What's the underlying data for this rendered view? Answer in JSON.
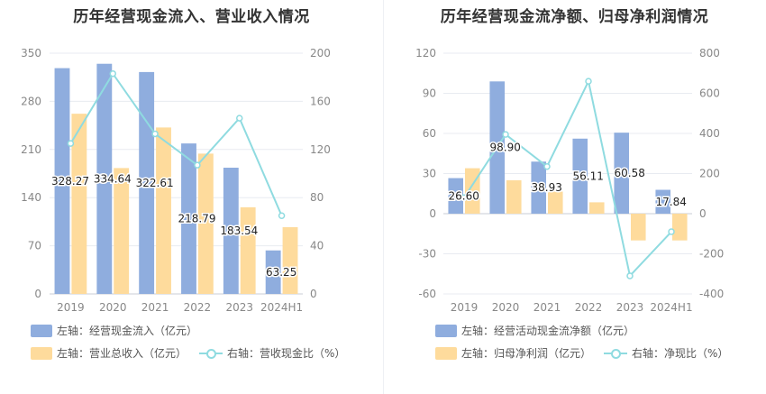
{
  "charts": [
    {
      "title": "历年经营现金流入、营业收入情况",
      "legend": [
        {
          "label": "左轴：经营现金流入（亿元）",
          "color": "#8fadde",
          "kind": "bar"
        },
        {
          "label": "左轴：营业总收入（亿元）",
          "color": "#fedb9c",
          "kind": "bar"
        },
        {
          "label": "右轴：营收现金比（%）",
          "color": "#8fdbe0",
          "kind": "line"
        }
      ]
    },
    {
      "title": "历年经营现金流净额、归母净利润情况",
      "legend": [
        {
          "label": "左轴：经营活动现金流净额（亿元）",
          "color": "#8fadde",
          "kind": "bar"
        },
        {
          "label": "左轴：归母净利润（亿元）",
          "color": "#fedb9c",
          "kind": "bar"
        },
        {
          "label": "右轴：净现比（%）",
          "color": "#8fdbe0",
          "kind": "line"
        }
      ]
    }
  ],
  "chart_data": [
    {
      "type": "bar",
      "title": "历年经营现金流入、营业收入情况",
      "categories": [
        "2019",
        "2020",
        "2021",
        "2022",
        "2023",
        "2024H1"
      ],
      "y_left": {
        "min": 0,
        "max": 350,
        "ticks": [
          "0",
          "70",
          "140",
          "210",
          "280",
          "350"
        ]
      },
      "y_right": {
        "min": 0,
        "max": 200,
        "ticks": [
          "0",
          "40",
          "80",
          "120",
          "160",
          "200"
        ]
      },
      "grid": true,
      "series": [
        {
          "name": "左轴：经营现金流入（亿元）",
          "kind": "bar",
          "axis": "left",
          "color": "#8fadde",
          "values": [
            328.27,
            334.64,
            322.61,
            218.79,
            183.54,
            63.25
          ],
          "labels": [
            "328.27",
            "334.64",
            "322.61",
            "218.79",
            "183.54",
            "63.25"
          ]
        },
        {
          "name": "左轴：营业总收入（亿元）",
          "kind": "bar",
          "axis": "left",
          "color": "#fedb9c",
          "values": [
            262,
            183,
            242,
            204,
            126,
            97
          ]
        },
        {
          "name": "右轴：营收现金比（%）",
          "kind": "line",
          "axis": "right",
          "color": "#8fdbe0",
          "values": [
            125,
            183,
            133,
            107,
            146,
            65
          ]
        }
      ]
    },
    {
      "type": "bar",
      "title": "历年经营现金流净额、归母净利润情况",
      "categories": [
        "2019",
        "2020",
        "2021",
        "2022",
        "2023",
        "2024H1"
      ],
      "y_left": {
        "min": -60,
        "max": 120,
        "ticks": [
          "-60",
          "-30",
          "0",
          "30",
          "60",
          "90",
          "120"
        ]
      },
      "y_right": {
        "min": -400,
        "max": 800,
        "ticks": [
          "-400",
          "-200",
          "0",
          "200",
          "400",
          "600",
          "800"
        ]
      },
      "grid": true,
      "series": [
        {
          "name": "左轴：经营活动现金流净额（亿元）",
          "kind": "bar",
          "axis": "left",
          "color": "#8fadde",
          "values": [
            26.6,
            98.9,
            38.93,
            56.11,
            60.58,
            17.84
          ],
          "labels": [
            "26.60",
            "98.90",
            "38.93",
            "56.11",
            "60.58",
            "17.84"
          ]
        },
        {
          "name": "左轴：归母净利润（亿元）",
          "kind": "bar",
          "axis": "left",
          "color": "#fedb9c",
          "values": [
            34,
            25,
            16.5,
            8.5,
            -20,
            -20
          ]
        },
        {
          "name": "右轴：净现比（%）",
          "kind": "line",
          "axis": "right",
          "color": "#8fdbe0",
          "values": [
            80,
            395,
            235,
            660,
            -310,
            -90
          ]
        }
      ]
    }
  ]
}
